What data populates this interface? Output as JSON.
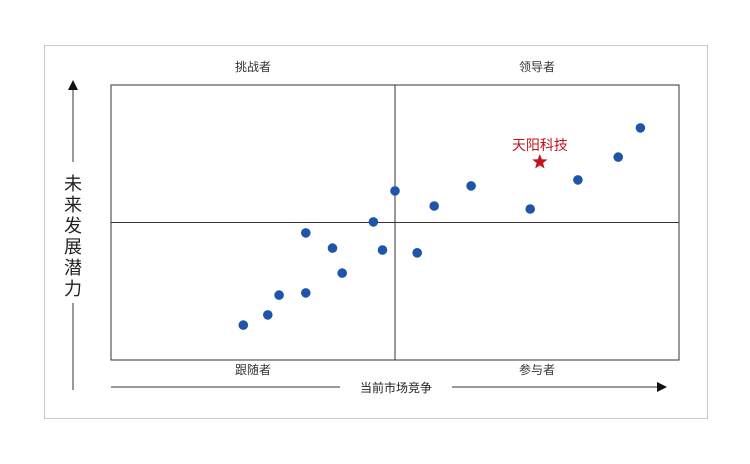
{
  "chart_data": {
    "type": "scatter",
    "quadrants": {
      "top_left": "挑战者",
      "top_right": "领导者",
      "bottom_left": "跟随者",
      "bottom_right": "参与者"
    },
    "xlabel": "当前市场竞争",
    "ylabel": "未来发展潜力",
    "grid": false,
    "xlim": [
      0,
      100
    ],
    "ylim": [
      0,
      100
    ],
    "points": [
      {
        "x": 23.3,
        "y": 12.7
      },
      {
        "x": 27.6,
        "y": 16.4
      },
      {
        "x": 29.6,
        "y": 23.6
      },
      {
        "x": 34.3,
        "y": 24.4
      },
      {
        "x": 34.3,
        "y": 46.2
      },
      {
        "x": 39.0,
        "y": 40.7
      },
      {
        "x": 40.7,
        "y": 31.6
      },
      {
        "x": 46.2,
        "y": 50.2
      },
      {
        "x": 47.8,
        "y": 40.0
      },
      {
        "x": 50.0,
        "y": 61.5
      },
      {
        "x": 53.9,
        "y": 39.0
      },
      {
        "x": 56.9,
        "y": 56.0
      },
      {
        "x": 63.4,
        "y": 63.3
      },
      {
        "x": 73.8,
        "y": 54.9
      },
      {
        "x": 82.2,
        "y": 65.5
      },
      {
        "x": 89.3,
        "y": 73.8
      },
      {
        "x": 93.2,
        "y": 84.4
      }
    ],
    "highlight": {
      "label": "天阳科技",
      "x": 75.5,
      "y": 72.0,
      "color": "#c0141c"
    },
    "point_color": "#1f55a8"
  }
}
